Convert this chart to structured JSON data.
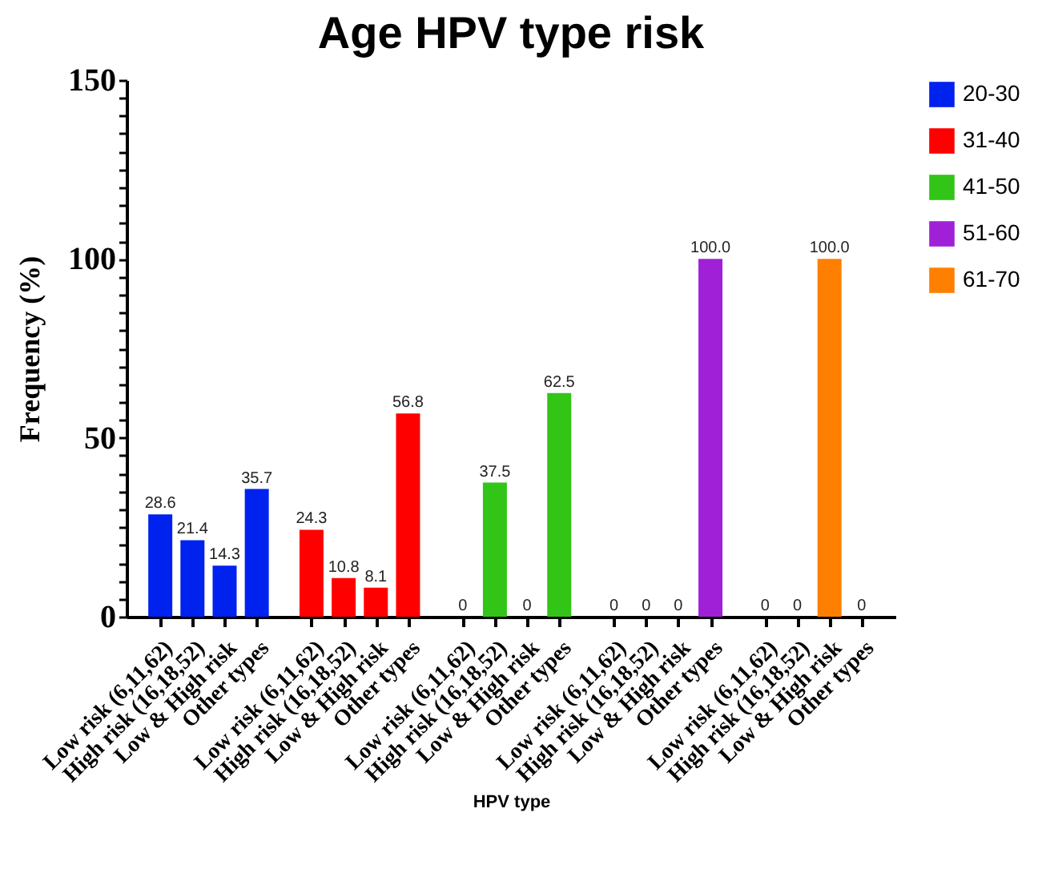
{
  "chart_data": {
    "type": "bar",
    "title": "Age HPV type risk",
    "xlabel": "HPV type",
    "ylabel": "Frequency (%)",
    "legend": "top right",
    "grid": false,
    "categories": [
      "Low risk (6,11,62)",
      "High risk (16,18,52)",
      "Low & High risk",
      "Other types",
      "Low risk (6,11,62)",
      "High risk (16,18,52)",
      "Low & High risk",
      "Other types",
      "Low risk (6,11,62)",
      "High risk (16,18,52)",
      "Low & High risk",
      "Other types",
      "Low risk (6,11,62)",
      "High risk (16,18,52)",
      "Low & High risk",
      "Other types",
      "Low risk (6,11,62)",
      "High risk (16,18,52)",
      "Low & High risk",
      "Other types"
    ],
    "ylim": [
      0,
      150
    ],
    "yticks": [
      0,
      {
        "value": 5,
        "label": null
      },
      {
        "value": 10,
        "label": null
      },
      {
        "value": 15,
        "label": null
      },
      {
        "value": 20,
        "label": null
      },
      {
        "value": 25,
        "label": null
      },
      {
        "value": 30,
        "label": null
      },
      {
        "value": 35,
        "label": null
      },
      {
        "value": 40,
        "label": null
      },
      {
        "value": 45,
        "label": null
      },
      50,
      {
        "value": 55,
        "label": null
      },
      {
        "value": 60,
        "label": null
      },
      {
        "value": 65,
        "label": null
      },
      {
        "value": 70,
        "label": null
      },
      {
        "value": 75,
        "label": null
      },
      {
        "value": 80,
        "label": null
      },
      {
        "value": 85,
        "label": null
      },
      {
        "value": 90,
        "label": null
      },
      {
        "value": 95,
        "label": null
      },
      100,
      {
        "value": 105,
        "label": null
      },
      {
        "value": 110,
        "label": null
      },
      {
        "value": 115,
        "label": null
      },
      {
        "value": 120,
        "label": null
      },
      {
        "value": 125,
        "label": null
      },
      {
        "value": 130,
        "label": null
      },
      {
        "value": 135,
        "label": null
      },
      {
        "value": 140,
        "label": null
      },
      {
        "value": 145,
        "label": null
      },
      150
    ],
    "series": [
      {
        "name": "20-30",
        "color": "#0022ee",
        "values": [
          28.6,
          21.4,
          14.3,
          35.7,
          null,
          null,
          null,
          null,
          null,
          null,
          null,
          null,
          null,
          null,
          null,
          null,
          null,
          null,
          null,
          null
        ],
        "value_labels": [
          "28.6",
          "21.4",
          "14.3",
          "35.7",
          null,
          null,
          null,
          null,
          null,
          null,
          null,
          null,
          null,
          null,
          null,
          null,
          null,
          null,
          null,
          null
        ]
      },
      {
        "name": "31-40",
        "color": "#ff0000",
        "values": [
          null,
          null,
          null,
          null,
          24.3,
          10.8,
          8.1,
          56.8,
          null,
          null,
          null,
          null,
          null,
          null,
          null,
          null,
          null,
          null,
          null,
          null
        ],
        "value_labels": [
          null,
          null,
          null,
          null,
          "24.3",
          "10.8",
          "8.1",
          "56.8",
          null,
          null,
          null,
          null,
          null,
          null,
          null,
          null,
          null,
          null,
          null,
          null
        ]
      },
      {
        "name": "41-50",
        "color": "#33c418",
        "values": [
          null,
          null,
          null,
          null,
          null,
          null,
          null,
          null,
          0,
          37.5,
          0,
          62.5,
          null,
          null,
          null,
          null,
          null,
          null,
          null,
          null
        ],
        "value_labels": [
          null,
          null,
          null,
          null,
          null,
          null,
          null,
          null,
          "0",
          "37.5",
          "0",
          "62.5",
          null,
          null,
          null,
          null,
          null,
          null,
          null,
          null
        ]
      },
      {
        "name": "51-60",
        "color": "#a020d8",
        "values": [
          null,
          null,
          null,
          null,
          null,
          null,
          null,
          null,
          null,
          null,
          null,
          null,
          0,
          0,
          0,
          100.0,
          null,
          null,
          null,
          null
        ],
        "value_labels": [
          null,
          null,
          null,
          null,
          null,
          null,
          null,
          null,
          null,
          null,
          null,
          null,
          "0",
          "0",
          "0",
          "100.0",
          null,
          null,
          null,
          null
        ]
      },
      {
        "name": "61-70",
        "color": "#ff8000",
        "values": [
          null,
          null,
          null,
          null,
          null,
          null,
          null,
          null,
          null,
          null,
          null,
          null,
          null,
          null,
          null,
          null,
          0,
          0,
          100.0,
          0
        ],
        "value_labels": [
          null,
          null,
          null,
          null,
          null,
          null,
          null,
          null,
          null,
          null,
          null,
          null,
          null,
          null,
          null,
          null,
          "0",
          "0",
          "100.0",
          "0"
        ]
      }
    ]
  }
}
